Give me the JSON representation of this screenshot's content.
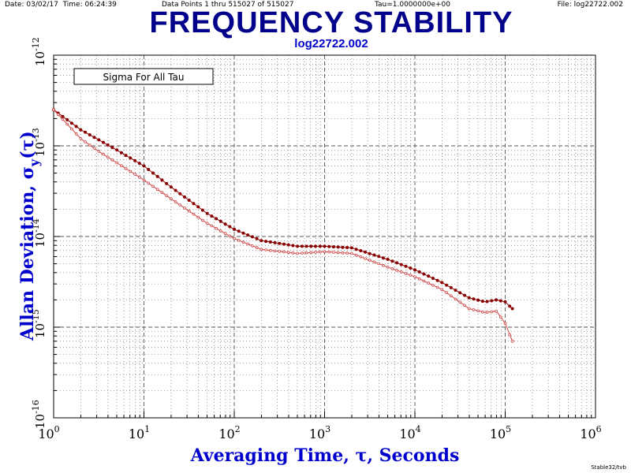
{
  "header": {
    "date": "Date: 03/02/17",
    "time": "Time: 06:24:39",
    "points": "Data Points 1 thru 515027 of 515027",
    "tau": "Tau=1.0000000e+00",
    "file": "File: log22722.002"
  },
  "footer": "Stable32/tvb",
  "colors": {
    "title": "#00008b",
    "axis_labels": "#0000cc",
    "series_dark": "#8b0000",
    "series_light": "#d24040",
    "grid": "#555555"
  },
  "chart_data": {
    "type": "scatter",
    "title": "FREQUENCY STABILITY",
    "subtitle": "log22722.002",
    "legend_box": "Sigma For All Tau",
    "legend_placement": "top-left",
    "xlabel": "Averaging Time, τ, Seconds",
    "ylabel_main": "Allan Deviation, σ",
    "ylabel_sub": "y",
    "ylabel_tail": "(τ)",
    "x_scale": "log",
    "y_scale": "log",
    "xlim": [
      1,
      1000000
    ],
    "ylim": [
      1e-16,
      1e-12
    ],
    "grid": true,
    "x_tick_labels": [
      {
        "base": "10",
        "exp": "0",
        "value": 1
      },
      {
        "base": "10",
        "exp": "1",
        "value": 10
      },
      {
        "base": "10",
        "exp": "2",
        "value": 100
      },
      {
        "base": "10",
        "exp": "3",
        "value": 1000
      },
      {
        "base": "10",
        "exp": "4",
        "value": 10000
      },
      {
        "base": "10",
        "exp": "5",
        "value": 100000
      },
      {
        "base": "10",
        "exp": "6",
        "value": 1000000
      }
    ],
    "y_tick_labels": [
      {
        "base": "10",
        "exp": "-12",
        "value": 1e-12
      },
      {
        "base": "10",
        "exp": "-13",
        "value": 1e-13
      },
      {
        "base": "10",
        "exp": "-14",
        "value": 1e-14
      },
      {
        "base": "10",
        "exp": "-15",
        "value": 1e-15
      },
      {
        "base": "10",
        "exp": "-16",
        "value": 1e-16
      }
    ],
    "series": [
      {
        "points": [
          [
            1,
            2.5e-13
          ],
          [
            2,
            1.5e-13
          ],
          [
            3,
            1.2e-13
          ],
          [
            5,
            9e-14
          ],
          [
            10,
            6e-14
          ],
          [
            20,
            3.5e-14
          ],
          [
            50,
            1.8e-14
          ],
          [
            100,
            1.2e-14
          ],
          [
            200,
            9e-15
          ],
          [
            500,
            7.8e-15
          ],
          [
            1000,
            7.8e-15
          ],
          [
            2000,
            7.5e-15
          ],
          [
            5000,
            5.6e-15
          ],
          [
            10000,
            4.3e-15
          ],
          [
            20000,
            3.1e-15
          ],
          [
            40000,
            2.1e-15
          ],
          [
            60000,
            1.9e-15
          ],
          [
            80000,
            2e-15
          ],
          [
            100000,
            1.9e-15
          ],
          [
            120000,
            1.6e-15
          ]
        ]
      },
      {
        "points": [
          [
            1,
            2.5e-13
          ],
          [
            2,
            1.2e-13
          ],
          [
            3,
            9e-14
          ],
          [
            5,
            6.5e-14
          ],
          [
            10,
            4.2e-14
          ],
          [
            20,
            2.6e-14
          ],
          [
            50,
            1.4e-14
          ],
          [
            100,
            9.5e-15
          ],
          [
            200,
            7.2e-15
          ],
          [
            500,
            6.5e-15
          ],
          [
            1000,
            6.8e-15
          ],
          [
            2000,
            6.5e-15
          ],
          [
            5000,
            4.6e-15
          ],
          [
            10000,
            3.6e-15
          ],
          [
            20000,
            2.6e-15
          ],
          [
            40000,
            1.6e-15
          ],
          [
            60000,
            1.45e-15
          ],
          [
            80000,
            1.5e-15
          ],
          [
            100000,
            1.1e-15
          ],
          [
            120000,
            7e-16
          ]
        ]
      }
    ]
  }
}
